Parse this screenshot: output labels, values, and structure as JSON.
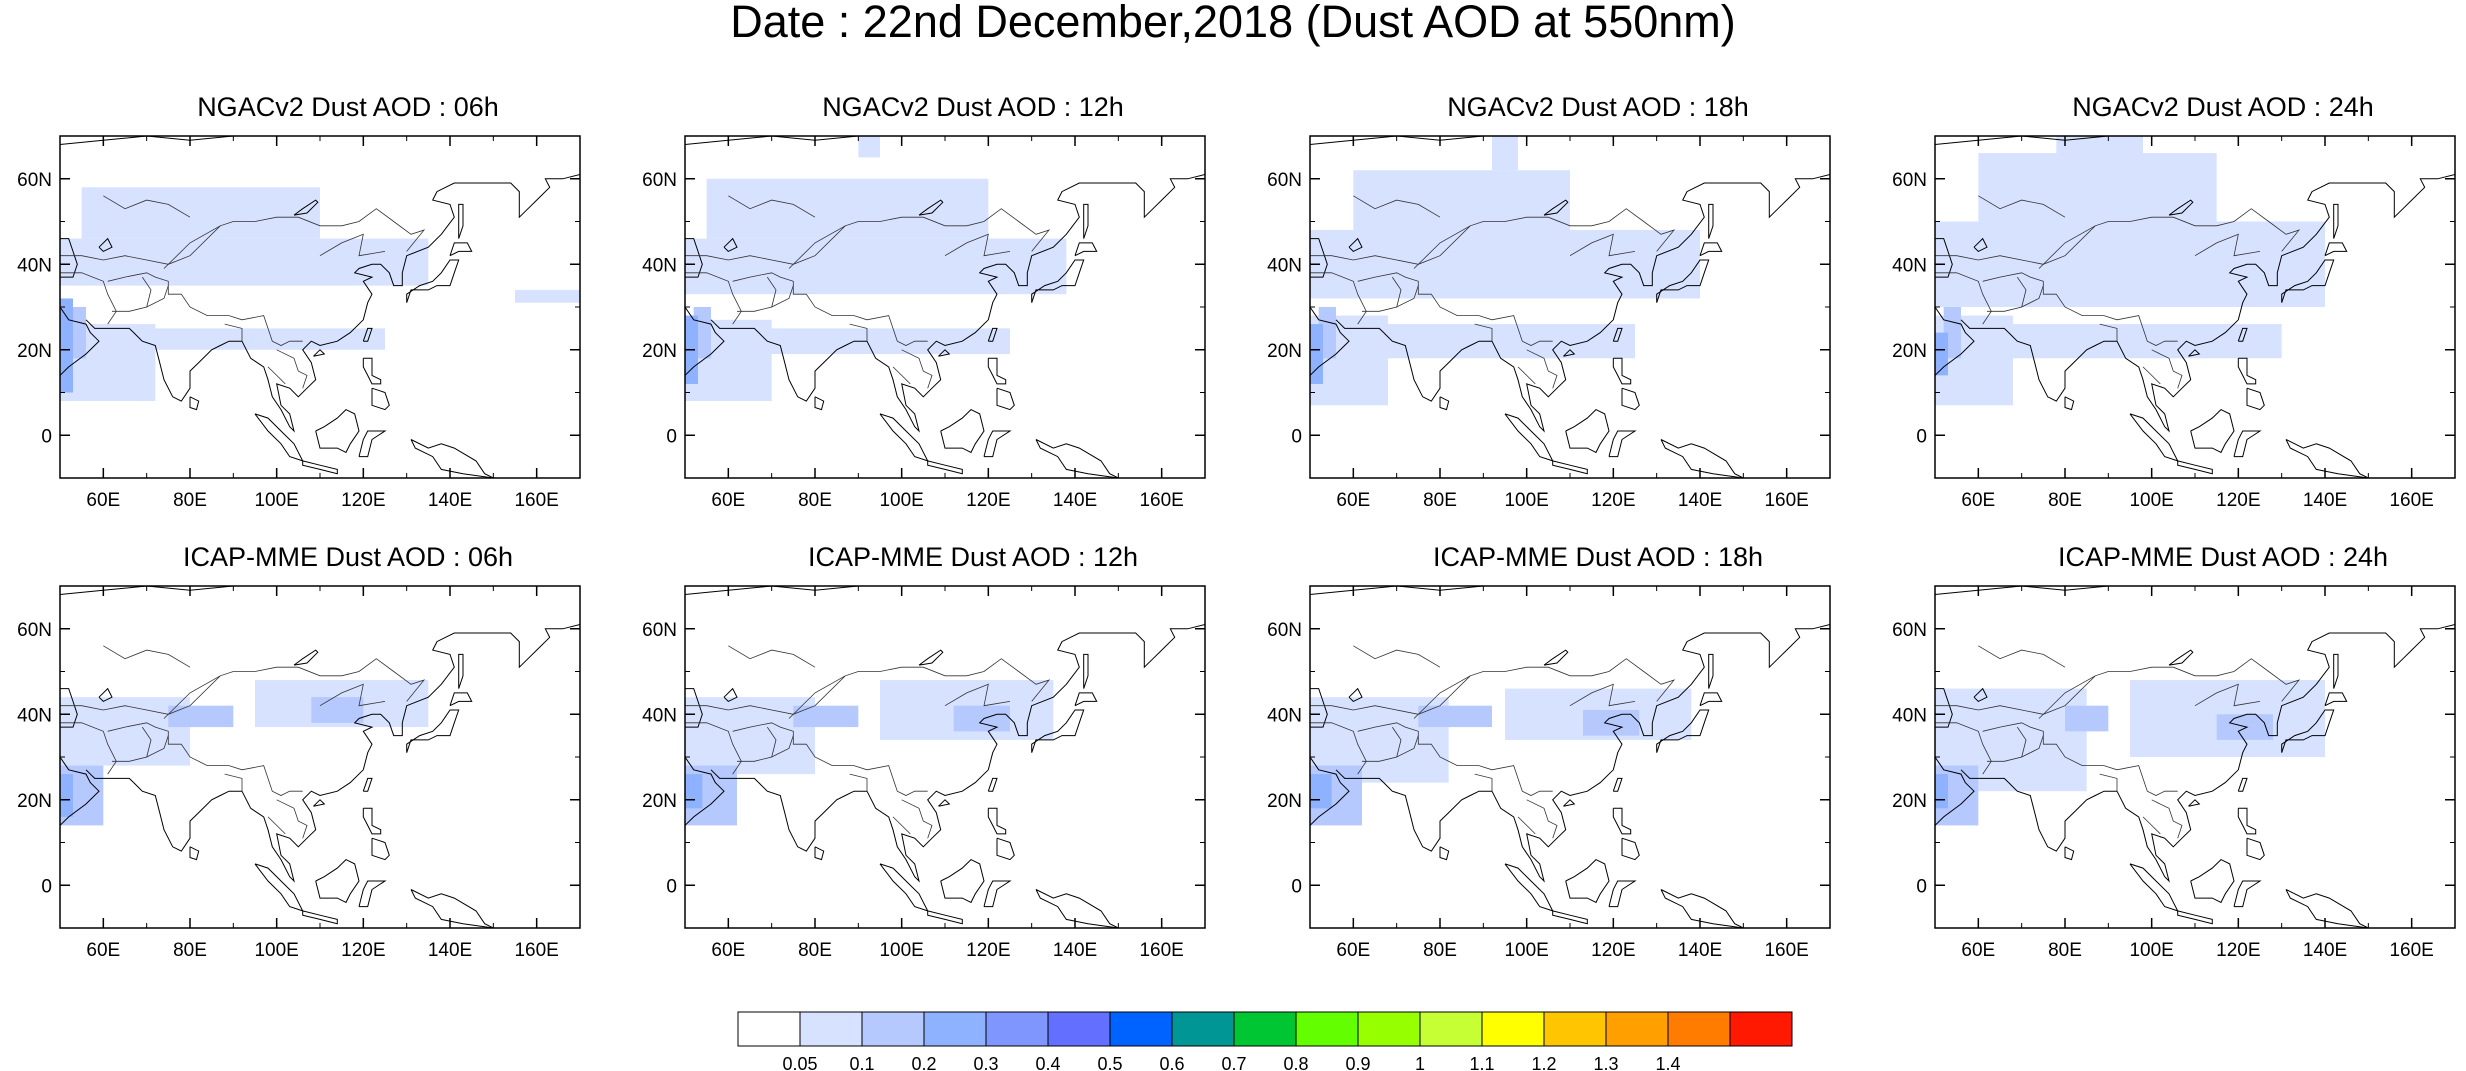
{
  "title": "Date : 22nd December,2018 (Dust AOD at 550nm)",
  "map": {
    "lon_range": [
      50,
      170
    ],
    "lat_range": [
      -10,
      70
    ],
    "lon_ticks": [
      "60E",
      "80E",
      "100E",
      "120E",
      "140E",
      "160E"
    ],
    "lat_ticks": [
      "0",
      "20N",
      "40N",
      "60N"
    ],
    "grid": false
  },
  "panels": [
    {
      "title": "NGACv2 Dust AOD : 06h",
      "model": "NGACv2",
      "hour": "06h"
    },
    {
      "title": "NGACv2 Dust AOD : 12h",
      "model": "NGACv2",
      "hour": "12h"
    },
    {
      "title": "NGACv2 Dust AOD : 18h",
      "model": "NGACv2",
      "hour": "18h"
    },
    {
      "title": "NGACv2 Dust AOD : 24h",
      "model": "NGACv2",
      "hour": "24h"
    },
    {
      "title": "ICAP-MME Dust AOD : 06h",
      "model": "ICAP-MME",
      "hour": "06h"
    },
    {
      "title": "ICAP-MME Dust AOD : 12h",
      "model": "ICAP-MME",
      "hour": "12h"
    },
    {
      "title": "ICAP-MME Dust AOD : 18h",
      "model": "ICAP-MME",
      "hour": "18h"
    },
    {
      "title": "ICAP-MME Dust AOD : 24h",
      "model": "ICAP-MME",
      "hour": "24h"
    }
  ],
  "colorbar": {
    "labels": [
      "0.05",
      "0.1",
      "0.2",
      "0.3",
      "0.4",
      "0.5",
      "0.6",
      "0.7",
      "0.8",
      "0.9",
      "1",
      "1.1",
      "1.2",
      "1.3",
      "1.4"
    ],
    "colors": [
      "#ffffff",
      "#d6e2ff",
      "#b5c9ff",
      "#8eb2ff",
      "#7f96ff",
      "#6370ff",
      "#0063ff",
      "#009696",
      "#00c633",
      "#63ff00",
      "#96ff00",
      "#c6ff33",
      "#ffff00",
      "#ffc600",
      "#ffa000",
      "#ff7c00",
      "#ff1900"
    ]
  },
  "chart_data": {
    "type": "heatmap",
    "variable": "Dust AOD at 550nm",
    "colorbar_levels": [
      0.05,
      0.1,
      0.2,
      0.3,
      0.4,
      0.5,
      0.6,
      0.7,
      0.8,
      0.9,
      1,
      1.1,
      1.2,
      1.3,
      1.4
    ],
    "fields": [
      {
        "panel": "NGACv2 06h",
        "blobs": [
          {
            "lon": [
              50,
              135
            ],
            "lat": [
              35,
              46
            ],
            "value": 0.07
          },
          {
            "lon": [
              55,
              110
            ],
            "lat": [
              46,
              58
            ],
            "value": 0.07
          },
          {
            "lon": [
              50,
              125
            ],
            "lat": [
              20,
              25
            ],
            "value": 0.07
          },
          {
            "lon": [
              50,
              72
            ],
            "lat": [
              8,
              26
            ],
            "value": 0.08
          },
          {
            "lon": [
              52,
              56
            ],
            "lat": [
              18,
              30
            ],
            "value": 0.12
          },
          {
            "lon": [
              50,
              53
            ],
            "lat": [
              10,
              32
            ],
            "value": 0.22
          },
          {
            "lon": [
              155,
              170
            ],
            "lat": [
              31,
              34
            ],
            "value": 0.07
          }
        ]
      },
      {
        "panel": "NGACv2 12h",
        "blobs": [
          {
            "lon": [
              50,
              138
            ],
            "lat": [
              33,
              46
            ],
            "value": 0.07
          },
          {
            "lon": [
              55,
              120
            ],
            "lat": [
              46,
              60
            ],
            "value": 0.07
          },
          {
            "lon": [
              50,
              125
            ],
            "lat": [
              19,
              25
            ],
            "value": 0.07
          },
          {
            "lon": [
              50,
              70
            ],
            "lat": [
              8,
              27
            ],
            "value": 0.08
          },
          {
            "lon": [
              52,
              56
            ],
            "lat": [
              18,
              30
            ],
            "value": 0.12
          },
          {
            "lon": [
              50,
              53
            ],
            "lat": [
              12,
              28
            ],
            "value": 0.22
          },
          {
            "lon": [
              90,
              95
            ],
            "lat": [
              65,
              70
            ],
            "value": 0.07
          }
        ]
      },
      {
        "panel": "NGACv2 18h",
        "blobs": [
          {
            "lon": [
              50,
              140
            ],
            "lat": [
              32,
              48
            ],
            "value": 0.07
          },
          {
            "lon": [
              60,
              110
            ],
            "lat": [
              48,
              62
            ],
            "value": 0.07
          },
          {
            "lon": [
              50,
              125
            ],
            "lat": [
              18,
              26
            ],
            "value": 0.07
          },
          {
            "lon": [
              50,
              68
            ],
            "lat": [
              7,
              28
            ],
            "value": 0.08
          },
          {
            "lon": [
              52,
              56
            ],
            "lat": [
              18,
              30
            ],
            "value": 0.12
          },
          {
            "lon": [
              50,
              53
            ],
            "lat": [
              12,
              26
            ],
            "value": 0.22
          },
          {
            "lon": [
              92,
              98
            ],
            "lat": [
              62,
              70
            ],
            "value": 0.07
          }
        ]
      },
      {
        "panel": "NGACv2 24h",
        "blobs": [
          {
            "lon": [
              50,
              140
            ],
            "lat": [
              30,
              50
            ],
            "value": 0.07
          },
          {
            "lon": [
              60,
              115
            ],
            "lat": [
              50,
              66
            ],
            "value": 0.07
          },
          {
            "lon": [
              50,
              130
            ],
            "lat": [
              18,
              26
            ],
            "value": 0.07
          },
          {
            "lon": [
              50,
              68
            ],
            "lat": [
              7,
              28
            ],
            "value": 0.08
          },
          {
            "lon": [
              52,
              56
            ],
            "lat": [
              18,
              30
            ],
            "value": 0.12
          },
          {
            "lon": [
              50,
              53
            ],
            "lat": [
              14,
              24
            ],
            "value": 0.22
          },
          {
            "lon": [
              78,
              98
            ],
            "lat": [
              60,
              70
            ],
            "value": 0.07
          }
        ]
      },
      {
        "panel": "ICAP-MME 06h",
        "blobs": [
          {
            "lon": [
              50,
              80
            ],
            "lat": [
              28,
              44
            ],
            "value": 0.07
          },
          {
            "lon": [
              75,
              90
            ],
            "lat": [
              37,
              42
            ],
            "value": 0.12
          },
          {
            "lon": [
              95,
              135
            ],
            "lat": [
              37,
              48
            ],
            "value": 0.07
          },
          {
            "lon": [
              108,
              120
            ],
            "lat": [
              38,
              44
            ],
            "value": 0.12
          },
          {
            "lon": [
              50,
              60
            ],
            "lat": [
              14,
              28
            ],
            "value": 0.12
          },
          {
            "lon": [
              50,
              53
            ],
            "lat": [
              16,
              26
            ],
            "value": 0.22
          }
        ]
      },
      {
        "panel": "ICAP-MME 12h",
        "blobs": [
          {
            "lon": [
              50,
              80
            ],
            "lat": [
              26,
              44
            ],
            "value": 0.07
          },
          {
            "lon": [
              75,
              90
            ],
            "lat": [
              37,
              42
            ],
            "value": 0.12
          },
          {
            "lon": [
              95,
              135
            ],
            "lat": [
              34,
              48
            ],
            "value": 0.07
          },
          {
            "lon": [
              112,
              125
            ],
            "lat": [
              36,
              42
            ],
            "value": 0.12
          },
          {
            "lon": [
              50,
              62
            ],
            "lat": [
              14,
              28
            ],
            "value": 0.12
          },
          {
            "lon": [
              50,
              54
            ],
            "lat": [
              18,
              26
            ],
            "value": 0.25
          }
        ]
      },
      {
        "panel": "ICAP-MME 18h",
        "blobs": [
          {
            "lon": [
              50,
              82
            ],
            "lat": [
              24,
              44
            ],
            "value": 0.07
          },
          {
            "lon": [
              75,
              92
            ],
            "lat": [
              37,
              42
            ],
            "value": 0.12
          },
          {
            "lon": [
              95,
              138
            ],
            "lat": [
              34,
              46
            ],
            "value": 0.07
          },
          {
            "lon": [
              113,
              126
            ],
            "lat": [
              35,
              41
            ],
            "value": 0.12
          },
          {
            "lon": [
              50,
              62
            ],
            "lat": [
              14,
              28
            ],
            "value": 0.12
          },
          {
            "lon": [
              50,
              55
            ],
            "lat": [
              18,
              26
            ],
            "value": 0.25
          }
        ]
      },
      {
        "panel": "ICAP-MME 24h",
        "blobs": [
          {
            "lon": [
              50,
              85
            ],
            "lat": [
              22,
              46
            ],
            "value": 0.07
          },
          {
            "lon": [
              80,
              90
            ],
            "lat": [
              36,
              42
            ],
            "value": 0.12
          },
          {
            "lon": [
              95,
              140
            ],
            "lat": [
              30,
              48
            ],
            "value": 0.07
          },
          {
            "lon": [
              115,
              128
            ],
            "lat": [
              34,
              40
            ],
            "value": 0.15
          },
          {
            "lon": [
              50,
              60
            ],
            "lat": [
              14,
              28
            ],
            "value": 0.12
          },
          {
            "lon": [
              50,
              53
            ],
            "lat": [
              18,
              26
            ],
            "value": 0.22
          }
        ]
      }
    ]
  }
}
